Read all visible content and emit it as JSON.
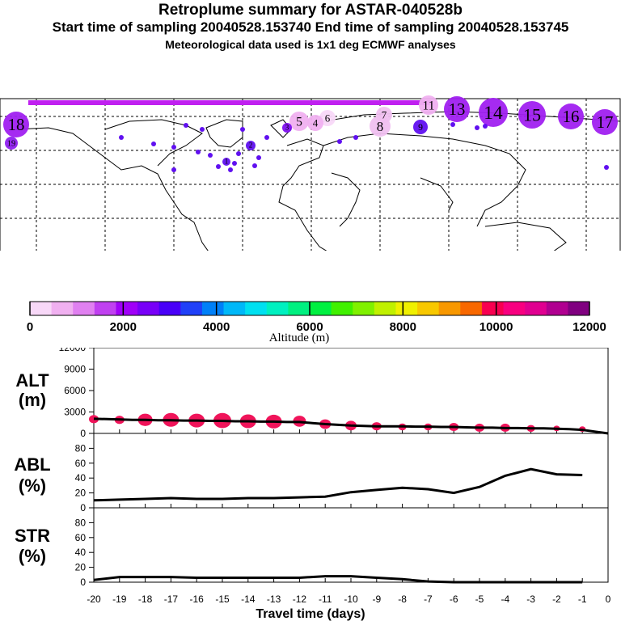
{
  "header": {
    "title": "Retroplume summary for ASTAR-040528b",
    "sampling": "Start time of sampling 20040528.153740     End time of sampling 20040528.153745",
    "met": "Meteorological data used is 1x1 deg ECMWF analyses"
  },
  "map": {
    "plume_labels": [
      "18",
      "19",
      "13",
      "14",
      "15",
      "16",
      "17",
      "11",
      "9",
      "8",
      "7",
      "6",
      "5",
      "4",
      "3",
      "2",
      "1"
    ]
  },
  "colorbar": {
    "colors": [
      "#f8d8f8",
      "#f0b0f0",
      "#e080f0",
      "#c040f0",
      "#a000f8",
      "#7800f8",
      "#4800f8",
      "#2040f8",
      "#0080f8",
      "#00b8f8",
      "#00e0f0",
      "#00f0c0",
      "#00f080",
      "#00f040",
      "#40f000",
      "#80f000",
      "#c0f000",
      "#f0f000",
      "#f8c800",
      "#f89800",
      "#f86800",
      "#f80050",
      "#f80080",
      "#e00090",
      "#b00090",
      "#800080"
    ],
    "tick_labels": [
      "0",
      "2000",
      "4000",
      "6000",
      "8000",
      "10000",
      "12000"
    ],
    "label": "Altitude (m)"
  },
  "chart_data": [
    {
      "type": "line",
      "panel": "ALT",
      "ylabel": "ALT\n(m)",
      "ylabel_lines": [
        "ALT",
        "(m)"
      ],
      "ylim": [
        0,
        12000
      ],
      "yticks": [
        0,
        3000,
        6000,
        9000,
        12000
      ],
      "x": [
        0,
        -0.5,
        -1,
        -1.5,
        -2,
        -2.5,
        -3,
        -3.5,
        -4,
        -4.5,
        -5,
        -5.5,
        -6,
        -6.5,
        -7,
        -7.5,
        -8,
        -8.5,
        -9,
        -9.5,
        -10,
        -10.5,
        -11,
        -11.5,
        -12,
        -12.5,
        -13,
        -13.5,
        -14,
        -14.5,
        -15,
        -15.5,
        -16,
        -16.5,
        -17,
        -17.5,
        -18,
        -18.5,
        -19,
        -19.5,
        -20
      ],
      "series": [
        {
          "name": "mean altitude",
          "values": [
            0,
            250,
            500,
            600,
            650,
            700,
            700,
            750,
            750,
            800,
            800,
            850,
            900,
            900,
            950,
            950,
            1000,
            1000,
            1000,
            1050,
            1100,
            1200,
            1300,
            1450,
            1600,
            1600,
            1650,
            1650,
            1700,
            1700,
            1750,
            1750,
            1800,
            1800,
            1850,
            1850,
            1900,
            1900,
            1950,
            2000,
            2050
          ]
        }
      ],
      "markers": {
        "x": [
          -20,
          -19,
          -18,
          -17,
          -16,
          -15,
          -14,
          -13,
          -12,
          -11,
          -10,
          -9,
          -8,
          -7,
          -6,
          -5,
          -4,
          -3,
          -2,
          -1
        ],
        "y": [
          2000,
          1900,
          1900,
          1900,
          1800,
          1800,
          1700,
          1650,
          1700,
          1300,
          1100,
          1000,
          900,
          900,
          900,
          800,
          800,
          700,
          700,
          600
        ],
        "size": [
          6,
          6,
          9,
          10,
          10,
          11,
          10,
          10,
          8,
          7,
          7,
          6,
          5,
          5,
          6,
          6,
          6,
          5,
          4,
          4
        ],
        "color": "#f0145a"
      }
    },
    {
      "type": "line",
      "panel": "ABL",
      "ylabel": "ABL\n(%)",
      "ylabel_lines": [
        "ABL",
        "(%)"
      ],
      "ylim": [
        0,
        100
      ],
      "yticks": [
        0,
        20,
        40,
        60,
        80
      ],
      "x": [
        -20,
        -19,
        -18,
        -17,
        -16,
        -15,
        -14,
        -13,
        -12,
        -11,
        -10,
        -9,
        -8,
        -7,
        -6,
        -5,
        -4,
        -3,
        -2,
        -1
      ],
      "series": [
        {
          "name": "ABL fraction",
          "values": [
            10,
            11,
            12,
            13,
            12,
            12,
            13,
            13,
            14,
            15,
            21,
            24,
            27,
            25,
            20,
            28,
            43,
            52,
            45,
            44
          ]
        }
      ]
    },
    {
      "type": "line",
      "panel": "STR",
      "ylabel": "STR\n(%)",
      "ylabel_lines": [
        "STR",
        "(%)"
      ],
      "ylim": [
        0,
        100
      ],
      "yticks": [
        0,
        20,
        40,
        60,
        80
      ],
      "x": [
        -20,
        -19,
        -18,
        -17,
        -16,
        -15,
        -14,
        -13,
        -12,
        -11,
        -10,
        -9,
        -8,
        -7,
        -6,
        -5,
        -4,
        -3,
        -2,
        -1
      ],
      "series": [
        {
          "name": "stratospheric fraction",
          "values": [
            3,
            7,
            7,
            7,
            6,
            6,
            6,
            6,
            6,
            8,
            8,
            6,
            4,
            1,
            0,
            0,
            0,
            0,
            0,
            0
          ]
        }
      ],
      "xlabel": "Travel time (days)",
      "xticks": [
        -20,
        -19,
        -18,
        -17,
        -16,
        -15,
        -14,
        -13,
        -12,
        -11,
        -10,
        -9,
        -8,
        -7,
        -6,
        -5,
        -4,
        -3,
        -2,
        -1,
        0
      ],
      "xlim": [
        -20,
        0
      ]
    }
  ]
}
